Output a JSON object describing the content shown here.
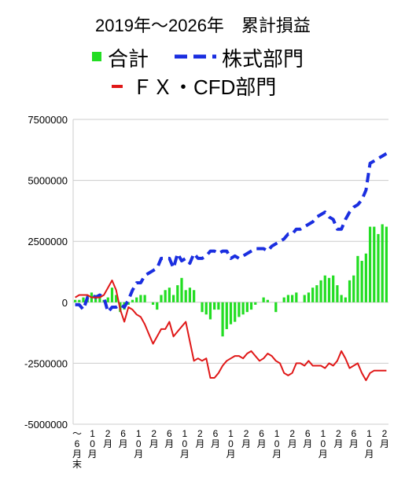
{
  "chart_data": {
    "type": "bar",
    "title": "2019年～2026年　累計損益",
    "legend": {
      "placement": "top",
      "entries": [
        {
          "label": "合計",
          "style": "bar",
          "color": "#22dd22"
        },
        {
          "label": "株式部門",
          "style": "dashed-line",
          "color": "#1a2ee0"
        },
        {
          "label": "ＦＸ・CFD部門",
          "style": "line",
          "color": "#e01818"
        }
      ]
    },
    "ylim": [
      -5000000,
      7500000
    ],
    "yticks": [
      7500000,
      5000000,
      2500000,
      0,
      -2500000,
      -5000000
    ],
    "ytick_labels": [
      "7500000",
      "5000000",
      "2500000",
      "0",
      "-2500000",
      "-5000000"
    ],
    "grid": true,
    "x_tick_labels": [
      "～6月末",
      "10月",
      "2月",
      "6月",
      "10月",
      "2月",
      "6月",
      "10月",
      "2月",
      "6月",
      "10月",
      "2月",
      "6月",
      "10月",
      "2月",
      "6月",
      "10月",
      "2月",
      "6月",
      "10月",
      "2月"
    ],
    "series": [
      {
        "name": "合計",
        "type": "bar",
        "values": [
          100000,
          100000,
          200000,
          300000,
          400000,
          300000,
          200000,
          100000,
          200000,
          600000,
          300000,
          -400000,
          -300000,
          -100000,
          100000,
          200000,
          300000,
          300000,
          0,
          -100000,
          -300000,
          300000,
          500000,
          600000,
          300000,
          700000,
          1000000,
          500000,
          600000,
          500000,
          0,
          -400000,
          -500000,
          -700000,
          -300000,
          -300000,
          -1400000,
          -1100000,
          -900000,
          -800000,
          -600000,
          -500000,
          -400000,
          -300000,
          -100000,
          0,
          200000,
          100000,
          0,
          -400000,
          0,
          200000,
          300000,
          300000,
          400000,
          0,
          300000,
          400000,
          600000,
          700000,
          900000,
          1100000,
          1000000,
          1100000,
          700000,
          300000,
          200000,
          900000,
          1100000,
          1900000,
          1700000,
          2000000,
          3100000,
          3100000,
          2800000,
          3200000,
          3100000
        ],
        "color": "#22dd22"
      },
      {
        "name": "株式部門",
        "type": "line",
        "style": "dashed",
        "values": [
          -100000,
          -100000,
          -300000,
          200000,
          300000,
          200000,
          300000,
          200000,
          -400000,
          -200000,
          -200000,
          -100000,
          -200000,
          100000,
          500000,
          800000,
          800000,
          1100000,
          1200000,
          1300000,
          1400000,
          1800000,
          1800000,
          1800000,
          1400000,
          2000000,
          1700000,
          1800000,
          1600000,
          2000000,
          1800000,
          1800000,
          1900000,
          2100000,
          2100000,
          2000000,
          2100000,
          2100000,
          1800000,
          1900000,
          1800000,
          1900000,
          2000000,
          2100000,
          2200000,
          2200000,
          2200000,
          2100000,
          2300000,
          2400000,
          2500000,
          2600000,
          2800000,
          2800000,
          3000000,
          3000000,
          3100000,
          3200000,
          3300000,
          3500000,
          3600000,
          3700000,
          3500000,
          3400000,
          3000000,
          3000000,
          3400000,
          3700000,
          3900000,
          4000000,
          4200000,
          4600000,
          5700000,
          5800000,
          5900000,
          6000000,
          6100000
        ],
        "color": "#1a2ee0"
      },
      {
        "name": "ＦＸ・CFD部門",
        "type": "line",
        "style": "solid",
        "values": [
          200000,
          300000,
          300000,
          300000,
          200000,
          200000,
          200000,
          300000,
          600000,
          900000,
          500000,
          -300000,
          -800000,
          -200000,
          -300000,
          -500000,
          -600000,
          -900000,
          -1300000,
          -1700000,
          -1400000,
          -1100000,
          -1100000,
          -800000,
          -1400000,
          -1200000,
          -1000000,
          -800000,
          -1600000,
          -2400000,
          -2300000,
          -2400000,
          -2300000,
          -3100000,
          -3100000,
          -2900000,
          -2600000,
          -2400000,
          -2300000,
          -2200000,
          -2200000,
          -2300000,
          -2100000,
          -2000000,
          -2200000,
          -2400000,
          -2300000,
          -2100000,
          -2200000,
          -2400000,
          -2500000,
          -2900000,
          -3000000,
          -2900000,
          -2500000,
          -2500000,
          -2600000,
          -2400000,
          -2600000,
          -2600000,
          -2600000,
          -2700000,
          -2500000,
          -2600000,
          -2400000,
          -2000000,
          -2300000,
          -2700000,
          -2600000,
          -2500000,
          -2900000,
          -3200000,
          -2900000,
          -2800000,
          -2800000,
          -2800000,
          -2800000
        ],
        "color": "#e01818"
      }
    ]
  }
}
